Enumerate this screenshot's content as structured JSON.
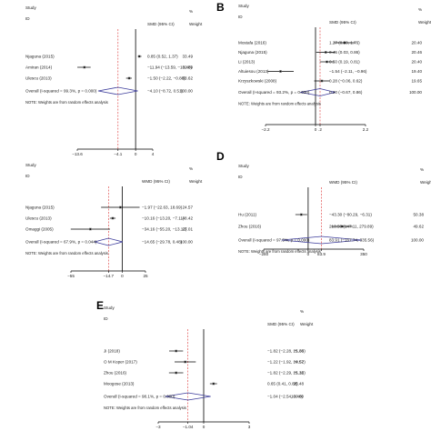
{
  "chart_data": [
    {
      "type": "forest",
      "panel": "A",
      "headers": {
        "study": "Study",
        "id": "ID",
        "effect": "SMD (95% CI)",
        "percent": "%",
        "weight": "Weight"
      },
      "studies": [
        {
          "label": "Njaguna (2015)",
          "est": 0.85,
          "lo": 0.52,
          "hi": 1.37,
          "ci_text": "0.85 (0.52, 1.37)",
          "weight_text": "33.49"
        },
        {
          "label": "Amiran (2014)",
          "est": -11.94,
          "lo": -13.59,
          "hi": -10.48,
          "ci_text": "−11.94 (−13.59, −10.48)",
          "weight_text": "32.89"
        },
        {
          "label": "Ulescu (2013)",
          "est": -1.5,
          "lo": -2.22,
          "hi": -0.88,
          "ci_text": "−1.50 (−2.22, −0.88)",
          "weight_text": "33.62"
        }
      ],
      "overall": {
        "label": "Overall (I-squared = 99.3%, p = 0.000)",
        "est": -4.1,
        "lo": -8.72,
        "hi": 0.51,
        "ci_text": "−4.10 (−8.72, 0.51)",
        "weight_text": "100.00"
      },
      "note": "NOTE: Weights are from random effects analysis",
      "ticks": [
        "−13.6",
        "−4.1",
        "0",
        "4"
      ],
      "tick_values": [
        -13.6,
        -4.1,
        0,
        4
      ],
      "xlim": [
        -13.6,
        4
      ],
      "null_line": 0
    },
    {
      "type": "forest",
      "panel": "B",
      "headers": {
        "study": "Study",
        "id": "ID",
        "effect": "SMD (95% CI)",
        "percent": "%",
        "weight": "Weight"
      },
      "studies": [
        {
          "label": "Mostafa (2016)",
          "est": 1.27,
          "lo": 0.8,
          "hi": 1.76,
          "ci_text": "1.27 (0.80, 1.76)",
          "weight_text": "20.40"
        },
        {
          "label": "Njaguna (2015)",
          "est": 0.45,
          "lo": 0.03,
          "hi": 0.86,
          "ci_text": "0.45 (0.03, 0.86)",
          "weight_text": "20.46"
        },
        {
          "label": "Li (2013)",
          "est": 0.5,
          "lo": 0.19,
          "hi": 0.81,
          "ci_text": "0.50 (0.19, 0.81)",
          "weight_text": "20.40"
        },
        {
          "label": "Altuiesou (2013)",
          "est": -1.54,
          "lo": -2.11,
          "hi": -0.96,
          "ci_text": "−1.54 (−2.11, −0.96)",
          "weight_text": "19.40"
        },
        {
          "label": "Krzyszkowski (2008)",
          "est": 0.28,
          "lo": -0.06,
          "hi": 0.62,
          "ci_text": "0.28 (−0.06, 0.62)",
          "weight_text": "19.65"
        }
      ],
      "overall": {
        "label": "Overall (I-squared = 93.2%, p = 0.000)",
        "est": 0.2,
        "lo": -0.67,
        "hi": 0.86,
        "ci_text": "0.20 (−0.67, 0.86)",
        "weight_text": "100.00"
      },
      "note": "NOTE: Weights are from random effects analysis",
      "ticks": [
        "−2.2",
        "0",
        ".2",
        "2.2"
      ],
      "tick_values": [
        -2.2,
        0,
        0.2,
        2.2
      ],
      "xlim": [
        -2.2,
        2.2
      ],
      "null_line": 0
    },
    {
      "type": "forest",
      "panel": "C",
      "headers": {
        "study": "Study",
        "id": "ID",
        "effect": "WMD (95% CI)",
        "percent": "%",
        "weight": "Weight"
      },
      "studies": [
        {
          "label": "Njaguna (2015)",
          "est": -1.97,
          "lo": -22.63,
          "hi": 18.69,
          "ci_text": "−1.97 (−22.63, 18.69)",
          "weight_text": "24.57"
        },
        {
          "label": "Ulescu (2013)",
          "est": -10.16,
          "lo": -13.2,
          "hi": -7.11,
          "ci_text": "−10.16 (−13.20, −7.11)",
          "weight_text": "48.42"
        },
        {
          "label": "Omaggi (2005)",
          "est": -34.16,
          "lo": -55.2,
          "hi": -13.12,
          "ci_text": "−34.16 (−55.20, −13.12)",
          "weight_text": "27.01"
        }
      ],
      "overall": {
        "label": "Overall (I-squared = 67.9%, p = 0.044)",
        "est": -14.65,
        "lo": -29.78,
        "hi": 0.48,
        "ci_text": "−14.65 (−29.78, 0.48)",
        "weight_text": "100.00"
      },
      "note": "NOTE: Weights are from random effects analysis",
      "ticks": [
        "−55",
        "−14.7",
        "0",
        "25"
      ],
      "tick_values": [
        -55,
        -14.7,
        0,
        25
      ],
      "xlim": [
        -55,
        25
      ],
      "null_line": 0
    },
    {
      "type": "forest",
      "panel": "D",
      "headers": {
        "study": "Study",
        "id": "ID",
        "effect": "WMD (95% CI)",
        "percent": "%",
        "weight": "Weight"
      },
      "studies": [
        {
          "label": "Hu (2011)",
          "est": -43.3,
          "lo": -80.29,
          "hi": -6.31,
          "ci_text": "−43.30 (−80.29, −6.31)",
          "weight_text": "50.38"
        },
        {
          "label": "Zhou (2016)",
          "est": 213.5,
          "lo": 147.11,
          "hi": 279.89,
          "ci_text": "213.50 (147.11, 279.89)",
          "weight_text": "49.62"
        }
      ],
      "overall": {
        "label": "Overall (I-squared = 97.5%, p = 0.000)",
        "est": 83.91,
        "lo": -167.74,
        "hi": 335.56,
        "ci_text": "83.91 (−167.74, 335.56)",
        "weight_text": "100.00"
      },
      "note": "NOTE: Weights are from random effects analysis",
      "ticks": [
        "−280",
        "0",
        "83.9",
        "350"
      ],
      "tick_values": [
        -280,
        0,
        83.9,
        350
      ],
      "xlim": [
        -280,
        350
      ],
      "null_line": 0
    },
    {
      "type": "forest",
      "panel": "E",
      "headers": {
        "study": "Study",
        "id": "ID",
        "effect": "SMD (95% CI)",
        "percent": "%",
        "weight": "Weight"
      },
      "studies": [
        {
          "label": "Ji (2018)",
          "est": -1.82,
          "lo": -2.28,
          "hi": -1.36,
          "ci_text": "−1.82 (−2.28, −1.36)",
          "weight_text": "25.03"
        },
        {
          "label": "O M Koper (2017)",
          "est": -1.22,
          "lo": -1.92,
          "hi": -0.52,
          "ci_text": "−1.22 (−1.92, −0.52)",
          "weight_text": "24.57"
        },
        {
          "label": "Zhou (2016)",
          "est": -1.82,
          "lo": -2.29,
          "hi": -1.35,
          "ci_text": "−1.82 (−2.29, −1.35)",
          "weight_text": "25.12"
        },
        {
          "label": "Moogose (2013)",
          "est": 0.65,
          "lo": 0.41,
          "hi": 0.88,
          "ci_text": "0.65 (0.41, 0.88)",
          "weight_text": "25.48"
        }
      ],
      "overall": {
        "label": "Overall (I-squared = 98.1%, p = 0.000)",
        "est": -1.04,
        "lo": -2.54,
        "hi": 0.46,
        "ci_text": "−1.04 (−2.54, 0.46)",
        "weight_text": "100.00"
      },
      "note": "NOTE: Weights are from random effects analysis",
      "ticks": [
        "−3",
        "−1.04",
        "0",
        "3"
      ],
      "tick_values": [
        -3,
        -1.04,
        0,
        3
      ],
      "xlim": [
        -3,
        3
      ],
      "null_line": 0
    }
  ]
}
